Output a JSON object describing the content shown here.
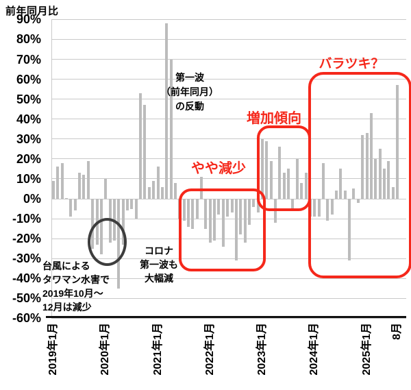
{
  "title": "前年同月比",
  "colors": {
    "bar": "#bcbcbc",
    "grid": "#c9c9c9",
    "axis": "#111111",
    "red_accent": "#f5281b",
    "ellipse": "#3d3d3d",
    "text": "#000000"
  },
  "y_axis": {
    "ticks": [
      "90%",
      "80%",
      "70%",
      "60%",
      "50%",
      "40%",
      "30%",
      "20%",
      "10%",
      "0%",
      "-10%",
      "-20%",
      "-30%",
      "-40%",
      "-50%",
      "-60%"
    ],
    "max": 90,
    "min": -60,
    "step": 10
  },
  "x_axis": {
    "ticks": [
      {
        "label": "2019年1月",
        "month_index": 0
      },
      {
        "label": "2020年1月",
        "month_index": 12
      },
      {
        "label": "2021年1月",
        "month_index": 24
      },
      {
        "label": "2022年1月",
        "month_index": 36
      },
      {
        "label": "2023年1月",
        "month_index": 48
      },
      {
        "label": "2024年1月",
        "month_index": 60
      },
      {
        "label": "2025年1月",
        "month_index": 72
      },
      {
        "label": "8月",
        "month_index": 79
      }
    ]
  },
  "chart_data": {
    "type": "bar",
    "title": "前年同月比",
    "unit": "%",
    "frequency": "monthly",
    "start_month": "2019-01",
    "end_month": "2025-08",
    "ylim": [
      -60,
      90
    ],
    "grid": true,
    "values": [
      9,
      16,
      18,
      0.5,
      -9,
      -6,
      13,
      12,
      19,
      -25,
      -23,
      -28,
      10,
      -22,
      -21,
      -45,
      -23,
      -6,
      -5,
      -10,
      53,
      47,
      6,
      9,
      16,
      6,
      88,
      70,
      8,
      -10,
      -11,
      -14,
      -15,
      -10,
      11,
      -15,
      -22,
      -21,
      -8,
      -24,
      -9,
      -7,
      -31,
      -18,
      -22,
      -13,
      -4,
      -7,
      30,
      29,
      19,
      -12,
      26,
      13,
      15,
      -5,
      20,
      8,
      13,
      -9,
      -9,
      -9,
      18,
      -11,
      -8,
      4,
      15,
      4,
      -31,
      5,
      -2,
      32,
      33,
      43,
      20,
      25,
      15,
      19,
      6,
      57
    ]
  },
  "annotations": {
    "daiichiha": {
      "lines": [
        "第一波",
        "（前年同月）",
        "の反動"
      ]
    },
    "taifu": {
      "lines": [
        "台風による",
        "タワマン水害で",
        "2019年10月〜",
        "12月は減少"
      ]
    },
    "corona": {
      "lines": [
        "コロナ",
        "第一波も",
        "大幅減"
      ]
    },
    "yaya": {
      "text": "やや減少"
    },
    "zouka": {
      "text": "増加傾向"
    },
    "baratsuki": {
      "text": "バラツキ？"
    }
  }
}
